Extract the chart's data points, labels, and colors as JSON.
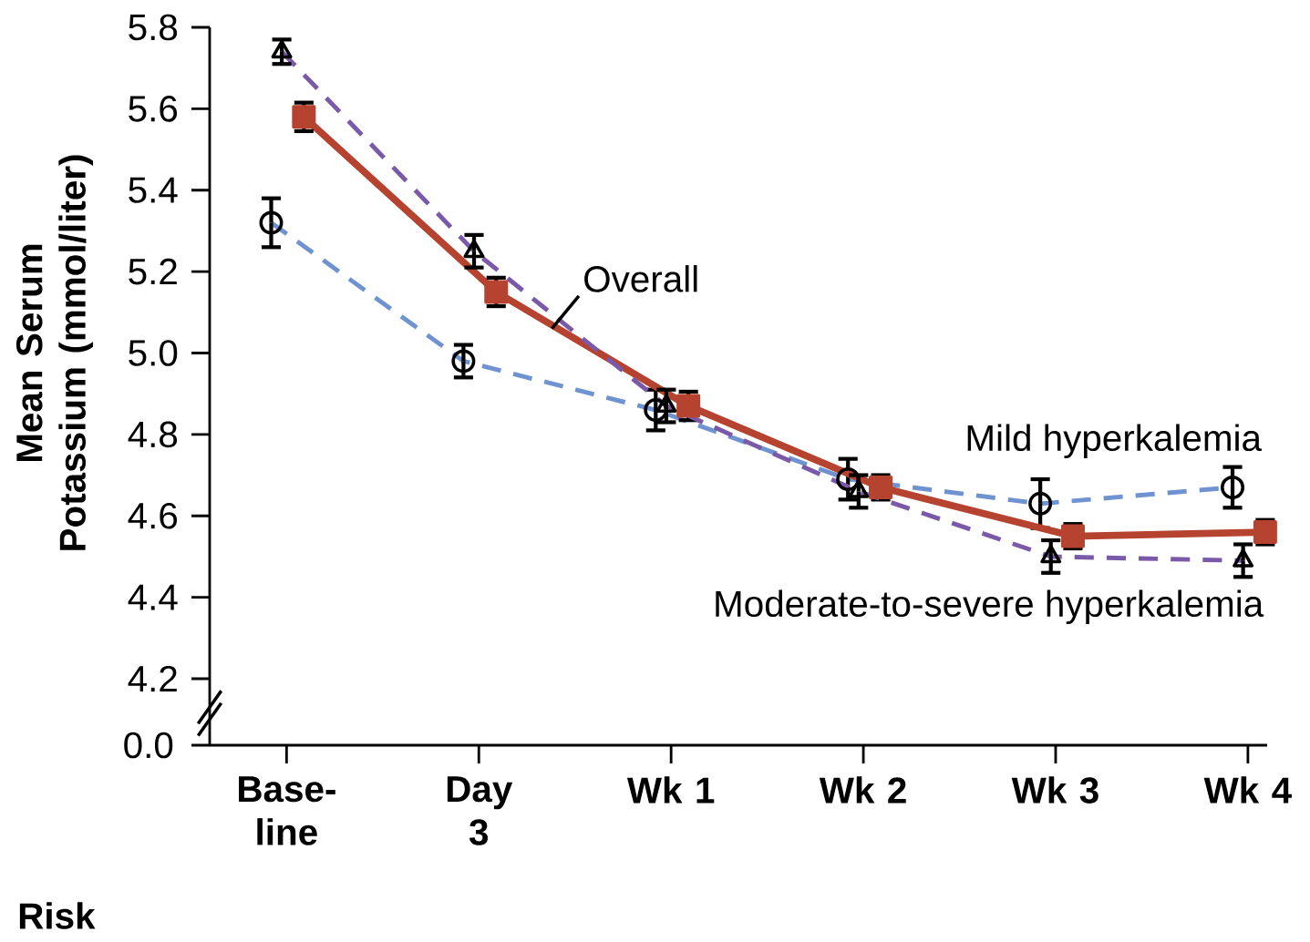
{
  "chart_data": {
    "type": "line",
    "ylabel": "Mean Serum Potassium (mmol/liter)",
    "categories": [
      "Base-line",
      "Day 3",
      "Wk 1",
      "Wk 2",
      "Wk 3",
      "Wk 4"
    ],
    "ylim": [
      4.2,
      5.8
    ],
    "yticks": [
      4.2,
      4.4,
      4.6,
      4.8,
      {
        "value": 5.0,
        "label": "5.0"
      },
      5.2,
      5.4,
      5.6,
      5.8
    ],
    "series": [
      {
        "name": "Mild hyperkalemia",
        "color": "#6f93d0",
        "line_style": "dashed",
        "marker": "circle",
        "values": [
          5.32,
          4.98,
          4.86,
          4.69,
          4.63,
          4.67
        ],
        "errors": [
          0.06,
          0.04,
          0.05,
          0.05,
          0.06,
          0.05
        ]
      },
      {
        "name": "Overall",
        "color": "#b5432f",
        "line_style": "solid",
        "marker": "square",
        "values": [
          5.58,
          5.15,
          4.87,
          4.67,
          4.55,
          4.56
        ],
        "errors": [
          0.035,
          0.035,
          0.035,
          0.03,
          0.03,
          0.03
        ]
      },
      {
        "name": "Moderate-to-severe hyperkalemia",
        "color": "#7a5aa8",
        "line_style": "dashed",
        "marker": "triangle",
        "values": [
          5.74,
          5.25,
          4.87,
          4.66,
          4.5,
          4.49
        ],
        "errors": [
          0.03,
          0.04,
          0.04,
          0.04,
          0.04,
          0.04
        ]
      }
    ],
    "annotations": [
      "0.0",
      "Risk"
    ]
  }
}
